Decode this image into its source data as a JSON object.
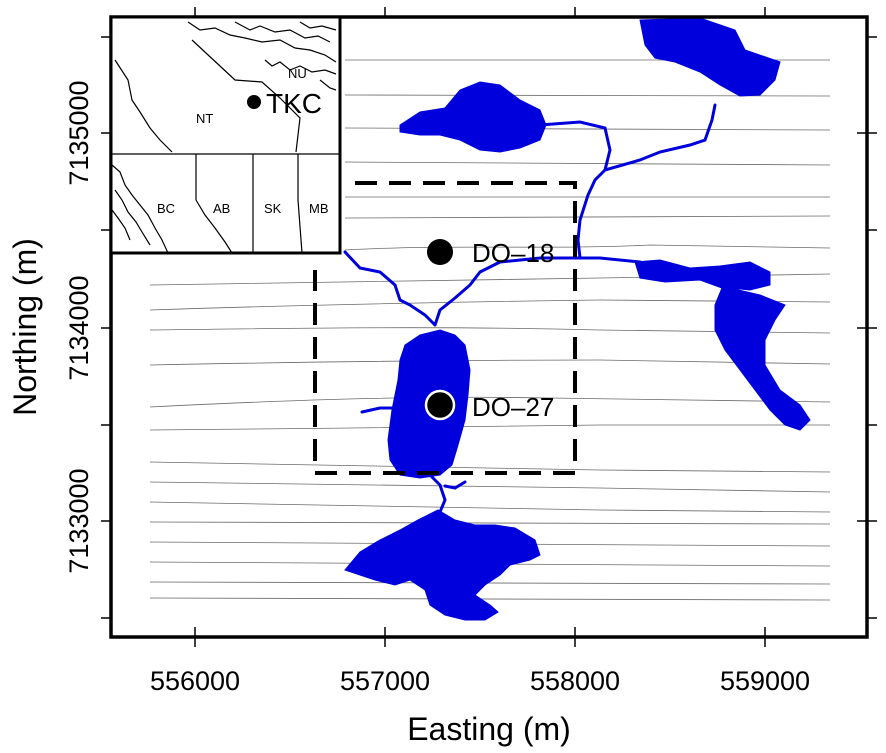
{
  "axes": {
    "xlabel": "Easting (m)",
    "ylabel": "Northing (m)",
    "x_ticks": [
      "556000",
      "557000",
      "558000",
      "559000"
    ],
    "y_ticks": [
      "7133000",
      "7134000",
      "7135000"
    ]
  },
  "sites": [
    {
      "id": "DO–18",
      "label": "DO–18"
    },
    {
      "id": "DO–27",
      "label": "DO–27"
    }
  ],
  "inset": {
    "marker_label": "TKC",
    "regions": [
      "NU",
      "NT",
      "BC",
      "AB",
      "SK",
      "MB"
    ]
  },
  "colors": {
    "water": "#0000dd",
    "frame": "#000000",
    "lines": "#555555"
  }
}
